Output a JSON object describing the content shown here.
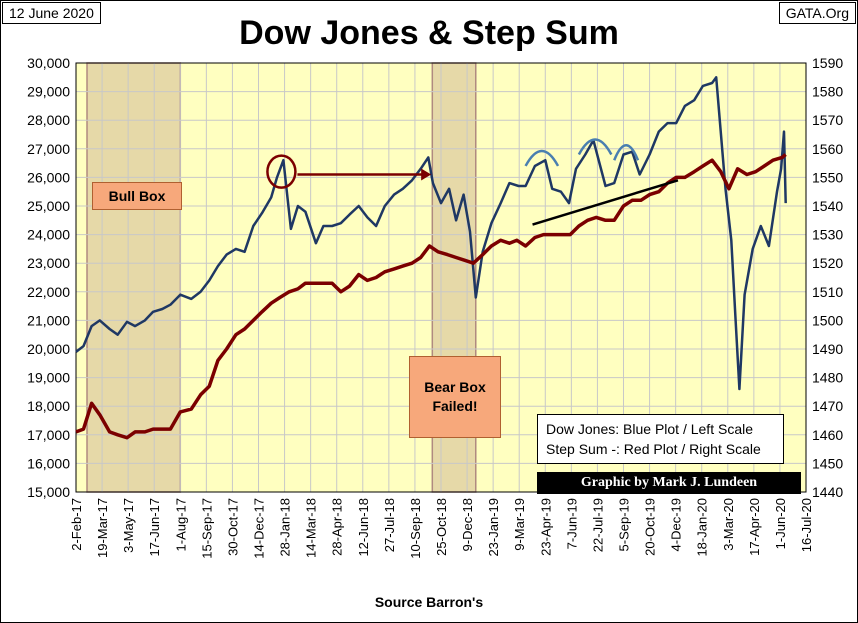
{
  "header": {
    "date": "12 June 2020",
    "site": "GATA.Org"
  },
  "labels": {
    "bull_box": "Bull Box",
    "bear_box_line1": "Bear Box",
    "bear_box_line2": "Failed!",
    "legend_line1": "Dow Jones: Blue Plot / Left Scale",
    "legend_line2": "Step Sum -: Red Plot / Right Scale",
    "credit": "Graphic by Mark J. Lundeen"
  },
  "colors": {
    "dow": "#1f3864",
    "step": "#7b0000",
    "plot_bg": "#ffffc0",
    "box_fill": "#e6d9a8",
    "arrow": "#7b0000",
    "arch": "#4a7fb0"
  },
  "chart_data": {
    "type": "line",
    "title": "Dow Jones & Step Sum",
    "xlabel": "Source Barron's",
    "ylabel_left": "",
    "ylabel_right": "",
    "ylim_left": [
      15000,
      30000
    ],
    "ylim_right": [
      1440,
      1590
    ],
    "left_ticks": [
      "15,000",
      "16,000",
      "17,000",
      "18,000",
      "19,000",
      "20,000",
      "21,000",
      "22,000",
      "23,000",
      "24,000",
      "25,000",
      "26,000",
      "27,000",
      "28,000",
      "29,000",
      "30,000"
    ],
    "right_ticks": [
      "1440",
      "1450",
      "1460",
      "1470",
      "1480",
      "1490",
      "1500",
      "1510",
      "1520",
      "1530",
      "1540",
      "1550",
      "1560",
      "1570",
      "1580",
      "1590"
    ],
    "x_tick_labels": [
      "2-Feb-17",
      "19-Mar-17",
      "3-May-17",
      "17-Jun-17",
      "1-Aug-17",
      "15-Sep-17",
      "30-Oct-17",
      "14-Dec-17",
      "28-Jan-18",
      "14-Mar-18",
      "28-Apr-18",
      "12-Jun-18",
      "27-Jul-18",
      "10-Sep-18",
      "25-Oct-18",
      "9-Dec-18",
      "23-Jan-19",
      "9-Mar-19",
      "23-Apr-19",
      "7-Jun-19",
      "22-Jul-19",
      "5-Sep-19",
      "20-Oct-19",
      "4-Dec-19",
      "18-Jan-20",
      "3-Mar-20",
      "17-Apr-20",
      "1-Jun-20",
      "16-Jul-20"
    ],
    "grid": true,
    "shaded_regions": [
      {
        "name": "Bull Box",
        "from": "2017-02-21",
        "to": "2017-08-01"
      },
      {
        "name": "Bear Box",
        "from": "2018-10-10",
        "to": "2018-12-24"
      }
    ],
    "series": [
      {
        "name": "Dow Jones",
        "axis": "left",
        "x": [
          "2017-02-02",
          "2017-02-15",
          "2017-03-01",
          "2017-03-15",
          "2017-04-01",
          "2017-04-15",
          "2017-05-01",
          "2017-05-15",
          "2017-06-01",
          "2017-06-15",
          "2017-07-01",
          "2017-07-15",
          "2017-08-01",
          "2017-08-20",
          "2017-09-05",
          "2017-09-20",
          "2017-10-05",
          "2017-10-20",
          "2017-11-05",
          "2017-11-20",
          "2017-12-05",
          "2017-12-20",
          "2018-01-05",
          "2018-01-15",
          "2018-01-26",
          "2018-02-08",
          "2018-02-20",
          "2018-03-05",
          "2018-03-23",
          "2018-04-05",
          "2018-04-20",
          "2018-05-05",
          "2018-05-20",
          "2018-06-05",
          "2018-06-20",
          "2018-07-05",
          "2018-07-20",
          "2018-08-05",
          "2018-08-20",
          "2018-09-05",
          "2018-09-20",
          "2018-10-03",
          "2018-10-11",
          "2018-10-25",
          "2018-11-08",
          "2018-11-20",
          "2018-12-03",
          "2018-12-14",
          "2018-12-24",
          "2019-01-05",
          "2019-01-20",
          "2019-02-05",
          "2019-02-20",
          "2019-03-08",
          "2019-03-20",
          "2019-04-05",
          "2019-04-23",
          "2019-05-05",
          "2019-05-20",
          "2019-06-03",
          "2019-06-15",
          "2019-07-01",
          "2019-07-15",
          "2019-08-05",
          "2019-08-20",
          "2019-09-05",
          "2019-09-20",
          "2019-10-03",
          "2019-10-20",
          "2019-11-05",
          "2019-11-20",
          "2019-12-05",
          "2019-12-20",
          "2020-01-05",
          "2020-01-20",
          "2020-02-05",
          "2020-02-12",
          "2020-02-28",
          "2020-03-09",
          "2020-03-16",
          "2020-03-23",
          "2020-04-01",
          "2020-04-15",
          "2020-04-29",
          "2020-05-13",
          "2020-05-27",
          "2020-06-03",
          "2020-06-08",
          "2020-06-11"
        ],
        "values": [
          19900,
          20100,
          20800,
          21000,
          20700,
          20500,
          20950,
          20800,
          21000,
          21300,
          21400,
          21550,
          21900,
          21750,
          22000,
          22400,
          22900,
          23300,
          23500,
          23400,
          24300,
          24750,
          25300,
          26000,
          26600,
          24200,
          25000,
          24800,
          23700,
          24300,
          24300,
          24400,
          24700,
          25000,
          24600,
          24300,
          25000,
          25400,
          25600,
          25900,
          26300,
          26700,
          25800,
          25100,
          25600,
          24500,
          25400,
          24100,
          21800,
          23400,
          24400,
          25100,
          25800,
          25700,
          25700,
          26400,
          26600,
          25600,
          25500,
          25100,
          26300,
          26800,
          27300,
          25700,
          25800,
          26800,
          26900,
          26100,
          26800,
          27600,
          27900,
          27900,
          28500,
          28700,
          29200,
          29300,
          29500,
          25600,
          23800,
          21200,
          18600,
          21900,
          23500,
          24300,
          23600,
          25500,
          26300,
          27600,
          25100
        ]
      },
      {
        "name": "Step Sum",
        "axis": "right",
        "x": [
          "2017-02-02",
          "2017-02-15",
          "2017-03-01",
          "2017-03-15",
          "2017-04-01",
          "2017-04-15",
          "2017-05-01",
          "2017-05-15",
          "2017-06-01",
          "2017-06-15",
          "2017-07-01",
          "2017-07-15",
          "2017-08-01",
          "2017-08-20",
          "2017-09-05",
          "2017-09-20",
          "2017-10-05",
          "2017-10-20",
          "2017-11-05",
          "2017-11-20",
          "2017-12-05",
          "2017-12-20",
          "2018-01-05",
          "2018-01-20",
          "2018-02-05",
          "2018-02-20",
          "2018-03-05",
          "2018-03-20",
          "2018-04-05",
          "2018-04-20",
          "2018-05-05",
          "2018-05-20",
          "2018-06-05",
          "2018-06-20",
          "2018-07-05",
          "2018-07-20",
          "2018-08-05",
          "2018-08-20",
          "2018-09-05",
          "2018-09-20",
          "2018-10-05",
          "2018-10-20",
          "2018-11-05",
          "2018-11-20",
          "2018-12-05",
          "2018-12-20",
          "2019-01-05",
          "2019-01-20",
          "2019-02-05",
          "2019-02-20",
          "2019-03-05",
          "2019-03-20",
          "2019-04-05",
          "2019-04-20",
          "2019-05-05",
          "2019-05-20",
          "2019-06-05",
          "2019-06-20",
          "2019-07-05",
          "2019-07-20",
          "2019-08-05",
          "2019-08-20",
          "2019-09-05",
          "2019-09-20",
          "2019-10-05",
          "2019-10-20",
          "2019-11-05",
          "2019-11-20",
          "2019-12-05",
          "2019-12-20",
          "2020-01-05",
          "2020-01-20",
          "2020-02-05",
          "2020-02-20",
          "2020-03-05",
          "2020-03-20",
          "2020-04-05",
          "2020-04-20",
          "2020-05-05",
          "2020-05-20",
          "2020-06-05",
          "2020-06-11"
        ],
        "values": [
          1461,
          1462,
          1471,
          1467,
          1461,
          1460,
          1459,
          1461,
          1461,
          1462,
          1462,
          1462,
          1468,
          1469,
          1474,
          1477,
          1486,
          1490,
          1495,
          1497,
          1500,
          1503,
          1506,
          1508,
          1510,
          1511,
          1513,
          1513,
          1513,
          1513,
          1510,
          1512,
          1516,
          1514,
          1515,
          1517,
          1518,
          1519,
          1520,
          1522,
          1526,
          1524,
          1523,
          1522,
          1521,
          1520,
          1523,
          1526,
          1528,
          1527,
          1528,
          1526,
          1529,
          1530,
          1530,
          1530,
          1530,
          1533,
          1535,
          1536,
          1535,
          1535,
          1540,
          1542,
          1542,
          1544,
          1545,
          1548,
          1550,
          1550,
          1552,
          1554,
          1556,
          1552,
          1546,
          1553,
          1551,
          1552,
          1554,
          1556,
          1557,
          1558
        ]
      }
    ]
  }
}
